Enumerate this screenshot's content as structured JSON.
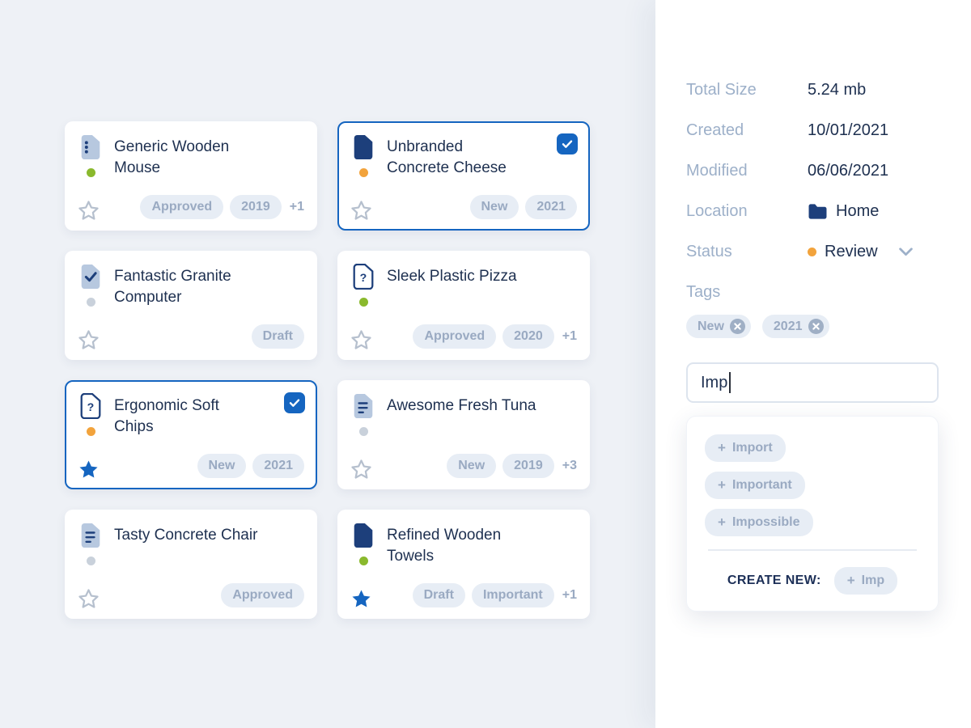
{
  "cards": [
    {
      "title": "Generic Wooden Mouse",
      "icon": "dots",
      "dot": "green",
      "starred": false,
      "selected": false,
      "badges": [
        "Approved",
        "2019"
      ],
      "more": "+1"
    },
    {
      "title": "Unbranded Concrete Cheese",
      "icon": "solid",
      "dot": "orange",
      "starred": false,
      "selected": true,
      "badges": [
        "New",
        "2021"
      ],
      "more": ""
    },
    {
      "title": "Fantastic Granite Computer",
      "icon": "check",
      "dot": "gray",
      "starred": false,
      "selected": false,
      "badges": [
        "Draft"
      ],
      "more": ""
    },
    {
      "title": "Sleek Plastic Pizza",
      "icon": "question",
      "dot": "green",
      "starred": false,
      "selected": false,
      "badges": [
        "Approved",
        "2020"
      ],
      "more": "+1"
    },
    {
      "title": "Ergonomic Soft Chips",
      "icon": "question",
      "dot": "orange",
      "starred": true,
      "selected": true,
      "badges": [
        "New",
        "2021"
      ],
      "more": ""
    },
    {
      "title": "Awesome Fresh Tuna",
      "icon": "lines",
      "dot": "gray",
      "starred": false,
      "selected": false,
      "badges": [
        "New",
        "2019"
      ],
      "more": "+3"
    },
    {
      "title": "Tasty Concrete Chair",
      "icon": "lines",
      "dot": "gray",
      "starred": false,
      "selected": false,
      "badges": [
        "Approved"
      ],
      "more": ""
    },
    {
      "title": "Refined Wooden Towels",
      "icon": "solid",
      "dot": "green",
      "starred": true,
      "selected": false,
      "badges": [
        "Draft",
        "Important"
      ],
      "more": "+1"
    }
  ],
  "details": {
    "rows": [
      {
        "label": "Total Size",
        "value": "5.24 mb",
        "type": "text"
      },
      {
        "label": "Created",
        "value": "10/01/2021",
        "type": "text"
      },
      {
        "label": "Modified",
        "value": "06/06/2021",
        "type": "text"
      },
      {
        "label": "Location",
        "value": "Home",
        "type": "location"
      },
      {
        "label": "Status",
        "value": "Review",
        "type": "status"
      }
    ],
    "tags_label": "Tags",
    "tags": [
      "New",
      "2021"
    ],
    "input_value": "Imp",
    "plus_glyph": "+",
    "suggestions": [
      "Import",
      "Important",
      "Impossible"
    ],
    "create_new_label": "CREATE NEW:",
    "create_new_value": "Imp"
  },
  "colors": {
    "accent": "#1565c0",
    "navy": "#1d3f7b",
    "green": "#8ab92d",
    "orange": "#f2a33c",
    "gray_dot": "#c9d1db",
    "badge_bg": "#e7edf5",
    "badge_text": "#9aaac2",
    "title_text": "#1e3050",
    "label_text": "#9db0c9",
    "page_bg": "#eef1f6"
  }
}
